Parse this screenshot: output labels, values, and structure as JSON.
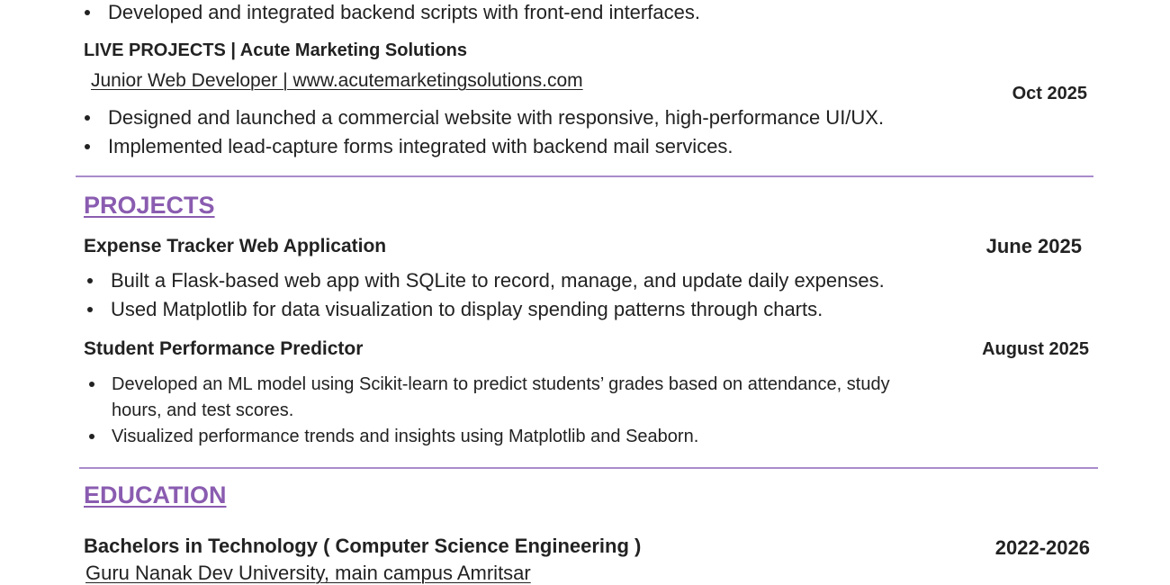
{
  "experience": {
    "prev_bullets": [
      "Developed and integrated backend scripts with front-end interfaces."
    ],
    "live": {
      "title": "LIVE PROJECTS | Acute Marketing Solutions",
      "role": "Junior Web Developer | www.acutemarketingsolutions.com",
      "date": "Oct 2025",
      "bullets": [
        "Designed and launched a commercial website with responsive, high-performance UI/UX.",
        "Implemented lead-capture forms integrated with backend mail services."
      ]
    }
  },
  "projects": {
    "heading": "PROJECTS",
    "items": [
      {
        "title": "Expense Tracker Web Application",
        "date": "June 2025",
        "bullets": [
          "Built a Flask-based web app with SQLite to record, manage, and update daily expenses.",
          "Used Matplotlib for data visualization to display spending patterns through charts."
        ]
      },
      {
        "title": "Student Performance Predictor",
        "date": "August 2025",
        "bullets": [
          "Developed an ML model using Scikit-learn to predict students’ grades based on attendance, study",
          "hours, and test scores.",
          "Visualized performance trends and insights using Matplotlib and Seaborn."
        ]
      }
    ]
  },
  "education": {
    "heading": "EDUCATION",
    "degree": "Bachelors in Technology ( Computer Science Engineering )",
    "years": "2022-2026",
    "school": "Guru Nanak Dev University, main campus Amritsar"
  },
  "colors": {
    "accent": "#8a5cb0",
    "divider": "#a98bcc",
    "text": "#222222"
  }
}
